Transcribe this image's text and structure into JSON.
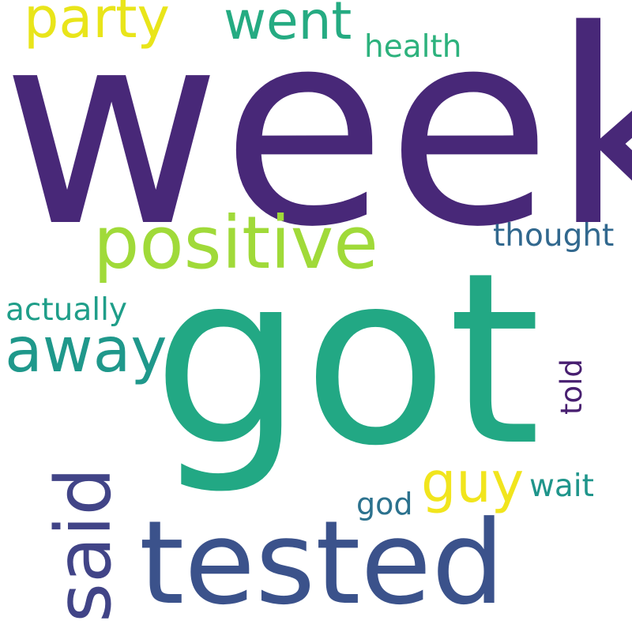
{
  "words": {
    "week": {
      "text": "week",
      "color": "#482878"
    },
    "got": {
      "text": "got",
      "color": "#22a884"
    },
    "tested": {
      "text": "tested",
      "color": "#3b528b"
    },
    "positive": {
      "text": "positive",
      "color": "#a0da39"
    },
    "said": {
      "text": "said",
      "color": "#414487"
    },
    "away": {
      "text": "away",
      "color": "#1f988b"
    },
    "party": {
      "text": "party",
      "color": "#e9e51a"
    },
    "went": {
      "text": "went",
      "color": "#25ab82"
    },
    "guy": {
      "text": "guy",
      "color": "#f1e51d"
    },
    "thought": {
      "text": "thought",
      "color": "#31688e"
    },
    "actually": {
      "text": "actually",
      "color": "#1f9e89"
    },
    "health": {
      "text": "health",
      "color": "#2db27d"
    },
    "told": {
      "text": "told",
      "color": "#481f70"
    },
    "wait": {
      "text": "wait",
      "color": "#1f958b"
    },
    "god": {
      "text": "god",
      "color": "#2c728e"
    }
  }
}
